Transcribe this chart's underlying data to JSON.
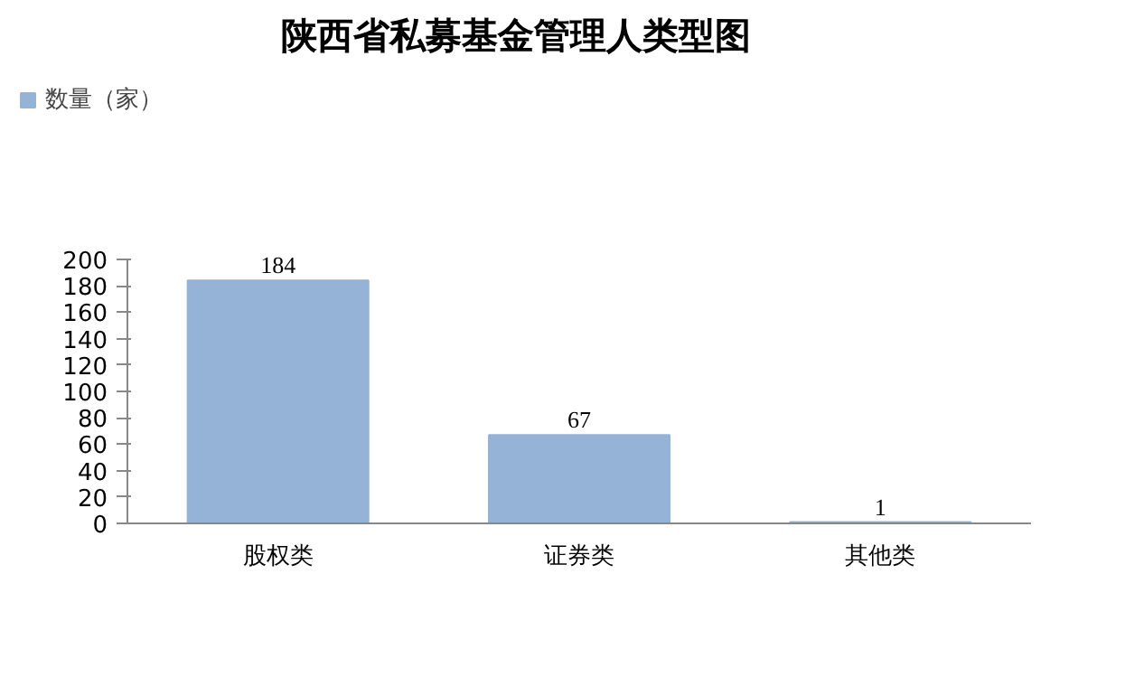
{
  "chart_data": {
    "type": "bar",
    "title": "陕西省私募基金管理人类型图",
    "categories": [
      "股权类",
      "证券类",
      "其他类"
    ],
    "series": [
      {
        "name": "数量（家）",
        "color": "#95b3d7",
        "values": [
          184,
          67,
          1
        ]
      }
    ],
    "ylim": [
      0,
      200
    ],
    "yticks": [
      0,
      20,
      40,
      60,
      80,
      100,
      120,
      140,
      160,
      180,
      200
    ],
    "grid": false,
    "legend": "top left",
    "data_labels": true
  }
}
